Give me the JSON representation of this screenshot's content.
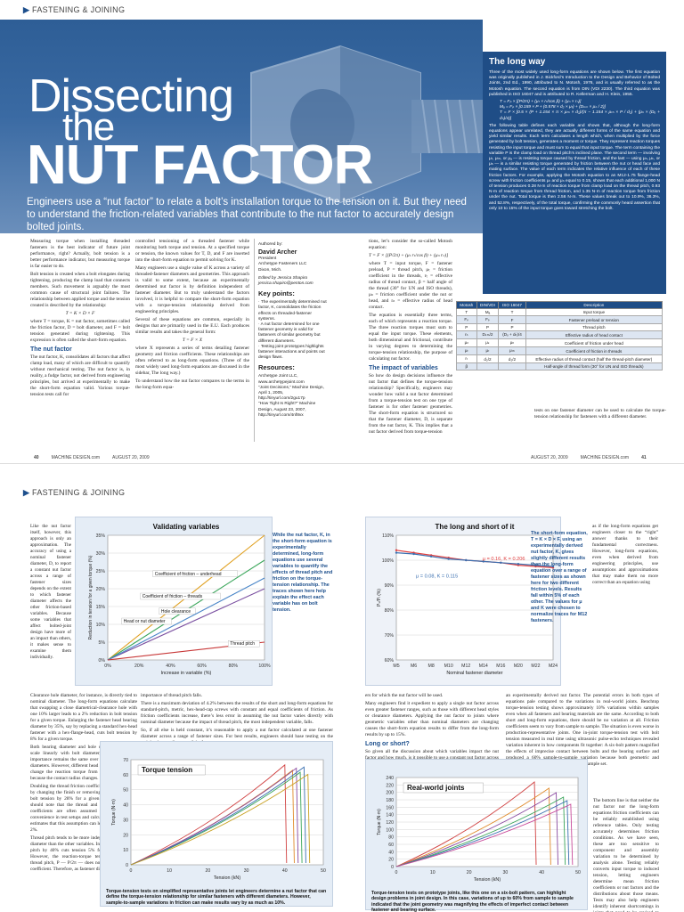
{
  "top": {
    "section": "FASTENING & JOINING",
    "title_line1": "Dissecting",
    "title_line2": "the",
    "title_line3": "NUT FACTOR",
    "deck": "Engineers use a “nut factor” to relate a bolt’s installation torque to the tension on it. But they need to understand the friction-related variables that contribute to the nut factor to accurately design bolted joints.",
    "col1": [
      "Measuring torque when installing threaded fasteners is the best indicator of future joint performance, right? Actually, bolt tension is a better performance indicator, but measuring torque is far easier to do.",
      "Bolt tension is created when a bolt elongates during tightening, producing the clamp load that connects members. Such movement is arguably the most common cause of structural joint failures. The relationship between applied torque and the tension created is described by the relationship:",
      "T = K × D × F",
      "where T = torque, K = nut factor, sometimes called the friction factor, D = bolt diameter, and F = bolt tension generated during tightening. This expression is often called the short-form equation."
    ],
    "col1_head": "The nut factor",
    "col1b": "The nut factor, K, consolidates all factors that affect clamp load, many of which are difficult to quantify without mechanical testing. The nut factor is, in reality, a fudge factor, not derived from engineering principles, but arrived at experimentally to make the short-form equation valid. Various torque-tension tests call for",
    "col2": [
      "controlled tensioning of a threaded fastener while monitoring both torque and tension. At a specified torque or tension, the known values for T, D, and F are inserted into the short-form equation to permit solving for K.",
      "Many engineers use a single value of K across a variety of threaded-fastener diameters and geometries. This approach is valid to some extent, because an experimentally determined nut factor is by definition independent of fastener diameter. But to truly understand the factors involved, it is helpful to compare the short-form equation with a torque-tension relationship derived from engineering principles.",
      "Several of these equations are common, especially in designs that are primarily used in the E.U. Each produces similar results and takes the general form:",
      "T = F × X",
      "where X represents a series of terms detailing fastener geometry and friction coefficients. These relationships are often referred to as long-form equations. (Three of the most widely used long-form equations are discussed in the sidebar, The long way.)",
      "To understand how the nut factor compares to the terms in the long-form equa-"
    ],
    "authored_label": "Authored by:",
    "author_name": "David Archer",
    "author_role": "President\nArchetype Fasteners LLC\nDixon, Mich.",
    "editor": "Edited by Jessica Shapiro\njessica.shapiro@penton.com",
    "key_points_head": "Key points:",
    "key_points": [
      "· The experimentally determined nut factor, K, consolidates the friction effects on threaded-fastener systems.",
      "· A nut factor determined for one fastener geometry is valid for fasteners of similar geometry but different diameters.",
      "· Testing joint prototypes highlights fastener interactions and points out design flaws."
    ],
    "resources_head": "Resources:",
    "resources": "Archetype Joint LLC, www.archetypejoint.com\n“Joint Decisions,” Machine Design, April 1, 2005, http://tinyurl.com/2gu17p\n“How Tight Is Right?” Machine Design, August 23, 2007, http://tinyurl.com/4nf8vx",
    "col3": [
      "tions, let’s consider the so-called Motosh equation:",
      "T = F × [(P/2π) + (μₜ rₜ/cos β) + (μₙ rₙ)]",
      "where T = input torque, F = fastener preload, P = thread pitch, μₜ = friction coefficient in the threads, rₜ = effective radius of thread contact, β = half angle of the thread (30° for UN and ISO threads), μₙ = friction coefficient under the nut or head, and rₙ = effective radius of head contact.",
      "The equation is essentially three terms, each of which represents a reaction torque. The three reaction torques must sum to equal the input torque. These elements, both dimensional and frictional, contribute in varying degrees to determining the torque-tension relationship, the purpose of calculating nut factor."
    ],
    "col3_head": "The impact of variables",
    "col3b": "So how do design decisions influence the nut factor that defines the torque-tension relationship? Specifically, engineers may wonder how valid a nut factor determined from a torque-tension test on one type of fastener is for other fastener geometries. The short-form equation is structured so that the fastener diameter, D, is separate from the nut factor, K. This implies that a nut factor derived from torque-tension",
    "col4b": "tests on one fastener diameter can be used to calculate the torque-tension relationship for fasteners with a different diameter.",
    "sidebar_title": "The long way",
    "sidebar_text": "Three of the most widely used long-form equations are shown below. The first equation was originally published in J. Bickford’s Introduction to the Design and Behavior of Bolted Joints, 2nd Ed., 1990, attributed to N. Motosh, 1976, and is usually referred to as the Motosh equation. The second equation is from DIN (VDI 2230). The third equation was published in ISO 16047 and is attributed to R. Kellerman and H. Klein, 1955.",
    "sidebar_eq": "T = Fₚ × [(P/2π) + (μₜ × rₜ/cos β) + (μₙ × rₙ)]\nMₐ = Fₚ × [0.159 × P + (0.578 × d₂ × μₜ) + (Dₖₘ × μₖ / 2)]\nT = F × [0.5 × (P + 1.154 × π × μₜₕ × d₂)/(π − 1.154 × μₜₕ × P / d₂) + (μₕ × (Dₒ + dₕ)/4)]",
    "sidebar_text2": "The following table defines each variable and shows that, although the long-form equations appear unrelated, they are actually different forms of the same equation and yield similar results. Each term calculates a length which, when multiplied by the force generated by bolt tension, generates a moment or torque. They represent reaction torques resisting the input torque and must sum to equal that input torque. The term containing the variable P is the clamp load on thread pitch’s inclined plane. The second term — involving μₜ, μₜₕ, or μₐ — is resisting torque caused by thread friction, and the last — using μₙ, μₖ, or μₕ — is a similar resisting torque generated by friction between the nut or head face and mating surface. The value of each term indicates the relative influence of each of these friction factors. For example, applying the Motosh equation to an M12-1.75 flange-head screw with friction coefficients μₜ and μₙ equal to 0.15, shows that each additional 1,000 N of tension produces 0.28 N·m of reaction torque from clamp load on the thread pitch, 0.93 N·m of reaction torque from thread friction, and 1.35 N·m of reaction torque from friction under the nut. Total torque is then 2.56 N·m. These values break out to 10.9%, 36.3%, and 52.8%, respectively, of the total torque, confirming the commonly heard assertion that only 10 to 15% of the input torque goes toward stretching the bolt.",
    "table": {
      "headers": [
        "Motosh",
        "DIN/VDI",
        "ISO 16047",
        "Description"
      ],
      "rows": [
        [
          "T",
          "Mₐ",
          "T",
          "Input torque"
        ],
        [
          "Fₚ",
          "Fₚ",
          "F",
          "Fastener preload or tension"
        ],
        [
          "P",
          "P",
          "P",
          "Thread pitch"
        ],
        [
          "rₙ",
          "Dₖₘ/2",
          "(Dₒ + dₕ)/4",
          "Effective radius of head contact"
        ],
        [
          "μₙ",
          "μₖ",
          "μₕ",
          "Coefficient of friction under head"
        ],
        [
          "μₜ",
          "μₜ",
          "μₜₕ",
          "Coefficient of friction in threads"
        ],
        [
          "rₜ",
          "d₂/2",
          "d₂/2",
          "Effective radius of thread contact (half the thread-pitch diameter)"
        ],
        [
          "β",
          "",
          "",
          "Half-angle of thread form (30° for UN and ISO threads)"
        ]
      ]
    },
    "footer_left": {
      "page": "40",
      "mag": "MACHINE DESIGN.com",
      "date": "AUGUST 20, 2009"
    },
    "footer_right": {
      "date": "AUGUST 20, 2009",
      "mag": "MACHINE DESIGN.com",
      "page": "41"
    }
  },
  "bottom": {
    "section": "FASTENING & JOINING",
    "leftcol": "Like the nut factor itself, however, this approach is only an approximation. The accuracy of using a nominal fastener diameter, D, to report a constant nut factor across a range of fastener sizes depends on the extent to which fastener diameter affects the other friction-based variables. Because some variables that affect bolted-joint design have more of an impact than others, it makes sense to examine them individually.",
    "body1": [
      "Clearance hole diameter, for instance, is directly tied to nominal diameter. The long-form equations calculate that swapping a close diametrical-clearance hole with one 10% larger leads to a 2% reduction in bolt tension for a given torque. Enlarging the fastener head bearing diameter by 35%, say by replacing a standard hex-head fastener with a hex-flange-head, cuts bolt tension by 8% for a given torque.",
      "Both bearing diameter and hole clearance generally scale linearly with bolt diameter, so their relative importance remains the same over a range of fastener diameters. However, different head styles or clearances change the reaction torque from underhead friction because the contact radius changes.",
      "Doubling the thread friction coefficient on its own, say by changing the finish or removing lubricant, reduces bolt tension by 28% for a given torque. Engineers should note that the thread and underhead friction coefficients are often assumed to be equal for convenience in test setups and calculations. ISO 16047 estimates that this assumption can lead to errors of 1 to 2%.",
      "Thread pitch tends to be more independent of nominal diameter than the other variables. Increasing just thread pitch by 40% cuts tension 5% for a given torque. However, the reaction-torque term containing the thread pitch, P — P/2π — does not contain a friction coefficient. Therefore, as fastener diameter and, conse-"
    ],
    "body2": [
      "importance of thread pitch falls.",
      "There is a maximum deviation of 4.2% between the results of the short and long-form equations for standard-pitch, metric, hex-head-cap screws with constant and equal coefficients of friction. As friction coefficients increase, there’s less error in assuming the nut factor varies directly with nominal diameter because the impact of thread pitch, the most independent variable, falls.",
      "So, if all else is held constant, it’s reasonable to apply a nut factor calculated at one fastener diameter across a range of fastener sizes. For best results, engineers should base testing on the weighted mean diameter of the fasten-"
    ],
    "body3": [
      "ers for which the nut factor will be used.",
      "Many engineers find it expedient to apply a single nut factor across even greater fastener ranges, such as those with different head styles or clearance diameters. Applying the nut factor to joints where geometric variables other than nominal diameters are changing causes the short-form equation results to differ from the long-form results by up to 15%."
    ],
    "body3_head": "Long or short?",
    "body3b": "So given all the discussion about which variables impact the nut factor and how much, is it possible to use a constant nut factor across a range of fasteners, it may seem",
    "body4": "an experimentally derived nut factor. The potential errors in both types of equations pale compared to the variations in real-world joints. Benchtop torque-tension testing shows approximately 10% variations within samples even when all fasteners and bearing materials are the same. According to both short and long-form equations, there should be no variation at all. Friction coefficients seem to vary from sample to sample. The situation is even worse in production-representative joints. One in-joint torque-tension test with bolt tension measured in real time using ultrasonic pulse-echo techniques revealed variation inherent in how components fit together: A six-bolt pattern magnified the effects of imprecise contact between bolts and the bearing surface and produced a 60% sample-to-sample variation because both geometric and friction variables were changing over the sample set.",
    "rightcol": "as if the long-form equations get engineers closer to the “right” answer thanks to their fundamental correctness. However, long-form equations, even when derived from engineering principles, use assumptions and approximations that may make them no more correct than an equation using",
    "rightcol2": "The bottom line is that neither the nut factor nor the long-form equations friction coefficients can be reliably established using reference tables. Only testing accurately determines friction conditions. As we have seen, these are too sensitive to component and assembly variation to be determined by analysis alone. Testing reliably converts input torque to induced tension, letting engineers determine mean friction coefficients or nut factors and the distributions about those means. Tests may also help engineers identify inherent shortcomings in joints that need to be revised to make them",
    "validating_note": "While the nut factor, K, in the short-form equation is experimentally determined, long-form equations use several variables to quantify the effects of thread pitch and friction on the torque-tension relationship. The traces shown here help explain the effect each variable has on bolt tension.",
    "longshort_note": "The short-form equation, T = K × D × F, using an experimentally derived nut factor, K, gives slightly different results than the long-form equation over a range of fastener sizes as shown here for two different friction levels. Results fall within 5% of each other. The values for μ and K were chosen to normalize traces for M12 fasteners.",
    "torque_caption": "Torque-tension tests on simplified representative joints let engineers determine a nut factor that can define the torque-tension relationship for similar fasteners with different diameters. However, sample-to-sample variations in friction can make results vary by as much as 10%.",
    "real_caption": "Torque-tension tests on prototype joints, like this one on a six-bolt pattern, can highlight design problems in joint design. In this case, variations of up to 60% from sample to sample indicated that the joint geometry was magnifying the effects of imperfect contact between fastener and bearing surface."
  },
  "chart_data": [
    {
      "type": "line",
      "title": "Validating variables",
      "xlabel": "Increase in variable (%)",
      "ylabel": "Reduction in tension for a given torque (%)",
      "x": [
        0,
        100
      ],
      "xticks": [
        "0%",
        "20%",
        "40%",
        "60%",
        "80%",
        "100%"
      ],
      "yticks": [
        "0%",
        "5%",
        "10%",
        "15%",
        "20%",
        "25%",
        "30%",
        "35%"
      ],
      "ylim": [
        0,
        35
      ],
      "series": [
        {
          "name": "Coefficient of friction – underhead",
          "values": [
            0,
            35
          ],
          "color": "#e0a020"
        },
        {
          "name": "Coefficient of friction – threads",
          "values": [
            0,
            28
          ],
          "color": "#3aa65a"
        },
        {
          "name": "Hole clearance",
          "values": [
            0,
            20
          ],
          "color": "#7a4fa0"
        },
        {
          "name": "Head or nut diameter",
          "values": [
            0,
            23
          ],
          "color": "#4a86c8"
        },
        {
          "name": "Thread pitch",
          "values": [
            0,
            5
          ],
          "color": "#c83838"
        }
      ]
    },
    {
      "type": "line",
      "title": "The long and short of it",
      "xlabel": "Nominal fastener diameter",
      "ylabel": "Pₛ/Pₗ (%)",
      "categories": [
        "M5",
        "M6",
        "M8",
        "M10",
        "M12",
        "M14",
        "M16",
        "M20",
        "M22",
        "M24"
      ],
      "yticks": [
        "60%",
        "70%",
        "80%",
        "90%",
        "100%",
        "110%"
      ],
      "ylim": [
        60,
        110
      ],
      "annotations": [
        "μ = 0.08, K = 0.115",
        "μ = 0.16, K = 0.206"
      ],
      "series": [
        {
          "values": [
            104,
            103,
            102,
            101,
            100,
            99.5,
            99,
            98,
            97.5,
            97
          ],
          "color": "#e04040"
        },
        {
          "values": [
            103,
            102.5,
            101.5,
            100.5,
            100,
            99.5,
            99,
            98.5,
            98,
            97.5
          ],
          "color": "#3a6fb0"
        }
      ]
    },
    {
      "type": "line",
      "title": "Torque tension",
      "xlabel": "Tension (kN)",
      "ylabel": "Torque (N·m)",
      "xticks": [
        "0",
        "10",
        "20",
        "30",
        "40",
        "50"
      ],
      "yticks": [
        "0",
        "10",
        "20",
        "30",
        "40",
        "50",
        "60",
        "70"
      ],
      "xlim": [
        0,
        50
      ],
      "ylim": [
        0,
        70
      ]
    },
    {
      "type": "line",
      "title": "Real-world joints",
      "xlabel": "Tension (kN)",
      "ylabel": "Torque (N·m)",
      "xticks": [
        "0",
        "10",
        "20",
        "30",
        "40",
        "50"
      ],
      "yticks": [
        "0",
        "20",
        "40",
        "60",
        "80",
        "100",
        "120",
        "140",
        "160",
        "180",
        "200",
        "220",
        "240"
      ],
      "xlim": [
        0,
        50
      ],
      "ylim": [
        0,
        240
      ]
    }
  ]
}
